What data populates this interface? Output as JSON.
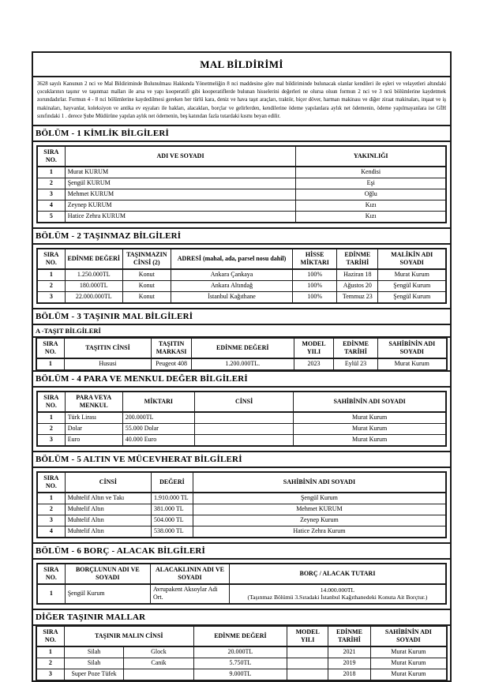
{
  "document": {
    "title": "MAL BİLDİRİMİ",
    "intro": "3628 sayılı Kanunun 2 nci ve Mal Bildiriminde Bulunulması Hakkında Yönetmeliğin 8 nci maddesine göre mal bildiriminde bulunacak olanlar kendileri ile eşleri ve velayetleri altındaki çocuklarının taşınır ve taşınmaz malları ile arsa ve yapı kooperatifi gibi kooperatiflerde bulunan hisselerini değerleri ne olursa olsun formun 2 nci ve 3 ncü bölümlerine kaydetmek zorundadırlar. Formun 4 - 8 nci bölümlerine kaydedilmesi gereken her türlü kara, deniz ve hava taşıt araçları, traktör, biçer döver, harman makinası ve diğer ziraat makinaları, inşaat ve iş makinaları, hayvanlar, koleksiyon ve antika ev eşyaları ile hakları, alacakları, borçlar ve gelirlerden, kendilerine ödeme yapılanlara aylık net ödemenin, ödeme yapılmayanlara ise GİH sınıfındaki 1 . derece Şube Müdürüne yapılan aylık net ödemenin, beş katından fazla tutardaki kısmı beyan edilir.",
    "ink_color": "#1b1b1b",
    "paper_color": "#ffffff"
  },
  "sections": {
    "bolum1": {
      "heading": "BÖLÜM - 1 KİMLİK BİLGİLERİ",
      "table": {
        "headers": [
          "SIRA\nNO.",
          "ADI VE SOYADI",
          "YAKINLIĞI"
        ],
        "rows": [
          [
            "1",
            "Murat KURUM",
            "Kendisi"
          ],
          [
            "2",
            "Şengül KURUM",
            "Eşi"
          ],
          [
            "3",
            "Mehmet KURUM",
            "Oğlu"
          ],
          [
            "4",
            "Zeynep KURUM",
            "Kızı"
          ],
          [
            "5",
            "Hatice Zehra KURUM",
            "Kızı"
          ]
        ]
      }
    },
    "bolum2": {
      "heading": "BÖLÜM - 2 TAŞINMAZ BİLGİLERİ",
      "table": {
        "headers": [
          "SIRA\nNO.",
          "EDİNME DEĞERİ",
          "TAŞINMAZIN\nCİNSİ (2)",
          "ADRESİ (mahal, ada, parsel nosu dahil)",
          "HİSSE\nMİKTARI",
          "EDİNME\nTARİHİ",
          "MALİKİN ADI\nSOYADI"
        ],
        "rows": [
          [
            "1",
            "1.250.000TL",
            "Konut",
            "Ankara Çankaya",
            "100%",
            "Haziran 18",
            "Murat Kurum"
          ],
          [
            "2",
            "180.000TL",
            "Konut",
            "Ankara Altındağ",
            "100%",
            "Ağustos 20",
            "Şengül Kurum"
          ],
          [
            "3",
            "22.000.000TL",
            "Konut",
            "İstanbul Kağıthane",
            "100%",
            "Temmuz 23",
            "Şengül Kurum"
          ]
        ]
      }
    },
    "bolum3": {
      "heading": "BÖLÜM - 3 TAŞINIR MAL BİLGİLERİ",
      "subheading": "A -TAŞIT BİLGİLERİ",
      "table": {
        "headers": [
          "SIRA\nNO.",
          "TAŞITIN CİNSİ",
          "TAŞITIN\nMARKASI",
          "EDİNME DEĞERİ",
          "MODEL YILI",
          "EDİNME\nTARİHİ",
          "SAHİBİNİN ADI\nSOYADI"
        ],
        "rows": [
          [
            "1",
            "Hususi",
            "Peugeot 408",
            "1.200.000TL.",
            "2023",
            "Eylül 23",
            "Murat Kurum"
          ]
        ]
      }
    },
    "bolum4": {
      "heading": "BÖLÜM - 4 PARA VE MENKUL DEĞER BİLGİLERİ",
      "table": {
        "headers": [
          "SIRA\nNO.",
          "PARA VEYA\nMENKUL",
          "MİKTARI",
          "CİNSİ",
          "SAHİBİNİN ADI SOYADI"
        ],
        "rows": [
          [
            "1",
            "Türk Lirası",
            "200.000TL",
            "",
            "Murat Kurum"
          ],
          [
            "2",
            "Dolar",
            "55.000 Dolar",
            "",
            "Murat Kurum"
          ],
          [
            "3",
            "Euro",
            "40.000 Euro",
            "",
            "Murat Kurum"
          ]
        ]
      }
    },
    "bolum5": {
      "heading": "BÖLÜM - 5 ALTIN VE MÜCEVHERAT BİLGİLERİ",
      "table": {
        "headers": [
          "SIRA\nNO.",
          "CİNSİ",
          "DEĞERİ",
          "SAHİBİNİN ADI SOYADI"
        ],
        "rows": [
          [
            "1",
            "Muhtelif Altın ve Takı",
            "1.910.000 TL",
            "Şengül Kurum"
          ],
          [
            "2",
            "Muhtelif Altın",
            "381.000 TL",
            "Mehmet KURUM"
          ],
          [
            "3",
            "Muhtelif Altın",
            "504.000 TL",
            "Zeynep Kurum"
          ],
          [
            "4",
            "Muhtelif Altın",
            "538.000 TL",
            "Hatice Zehra Kurum"
          ]
        ]
      }
    },
    "bolum6": {
      "heading": "BÖLÜM - 6 BORÇ - ALACAK BİLGİLERİ",
      "table": {
        "headers": [
          "SIRA\nNO.",
          "BORÇLUNUN ADI VE\nSOYADI",
          "ALACAKLININ ADI VE\nSOYADI",
          "BORÇ / ALACAK TUTARI"
        ],
        "rows": [
          [
            "1",
            "Şengül Kurum",
            "Avrupakent Aksoylar Adi Ort.",
            "14.000.000TL\n(Taşınmaz Bölümü 3.Sıradaki İstanbul Kağıthanedeki Konuta Ait Borçtur.)"
          ]
        ]
      }
    },
    "diger": {
      "heading": "DİĞER TAŞINIR MALLAR",
      "table": {
        "headers": [
          "SIRA\nNO.",
          {
            "label": "TAŞINIR MALIN CİNSİ",
            "colspan": 2
          },
          "EDİNME DEĞERİ",
          "MODEL YILI",
          "EDİNME\nTARİHİ",
          "SAHİBİNİN ADI\nSOYADI"
        ],
        "rows": [
          [
            "1",
            "Silah",
            "Glock",
            "20.000TL",
            "",
            "2021",
            "Murat Kurum"
          ],
          [
            "2",
            "Silah",
            "Canik",
            "5.750TL",
            "",
            "2019",
            "Murat Kurum"
          ],
          [
            "3",
            "Super Poze Tüfek",
            "",
            "9.000TL",
            "",
            "2018",
            "Murat Kurum"
          ]
        ]
      }
    }
  }
}
